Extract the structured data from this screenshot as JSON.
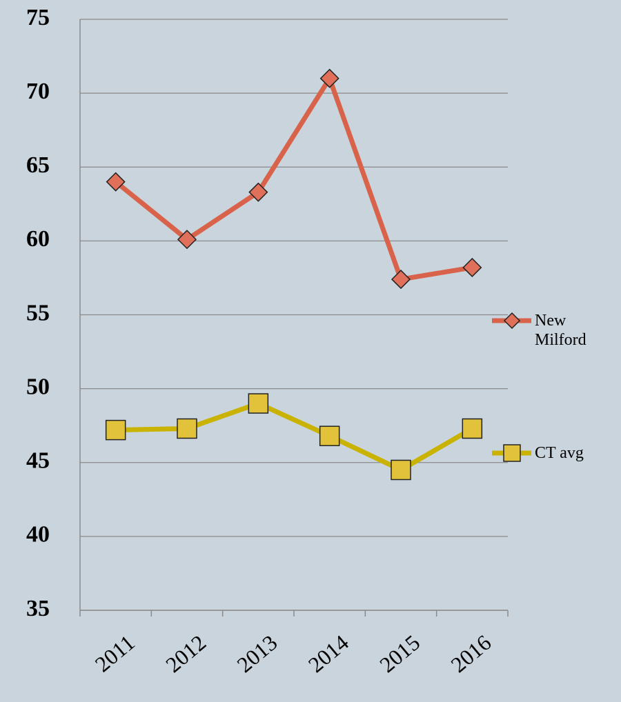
{
  "chart_data": {
    "type": "line",
    "categories": [
      "2011",
      "2012",
      "2013",
      "2014",
      "2015",
      "2016"
    ],
    "series": [
      {
        "name": "New Milford",
        "color": "#d9634a",
        "marker": "diamond",
        "marker_color": "#e0705a",
        "values": [
          64,
          60.1,
          63.3,
          71,
          57.4,
          58.2
        ]
      },
      {
        "name": "CT avg",
        "color": "#c9b300",
        "marker": "square",
        "marker_color": "#e1c23a",
        "values": [
          47.2,
          47.3,
          49,
          46.8,
          44.5,
          47.3
        ]
      }
    ],
    "ylim": [
      35,
      75
    ],
    "yticks": [
      35,
      40,
      45,
      50,
      55,
      60,
      65,
      70,
      75
    ],
    "grid": true,
    "legend": "right"
  }
}
